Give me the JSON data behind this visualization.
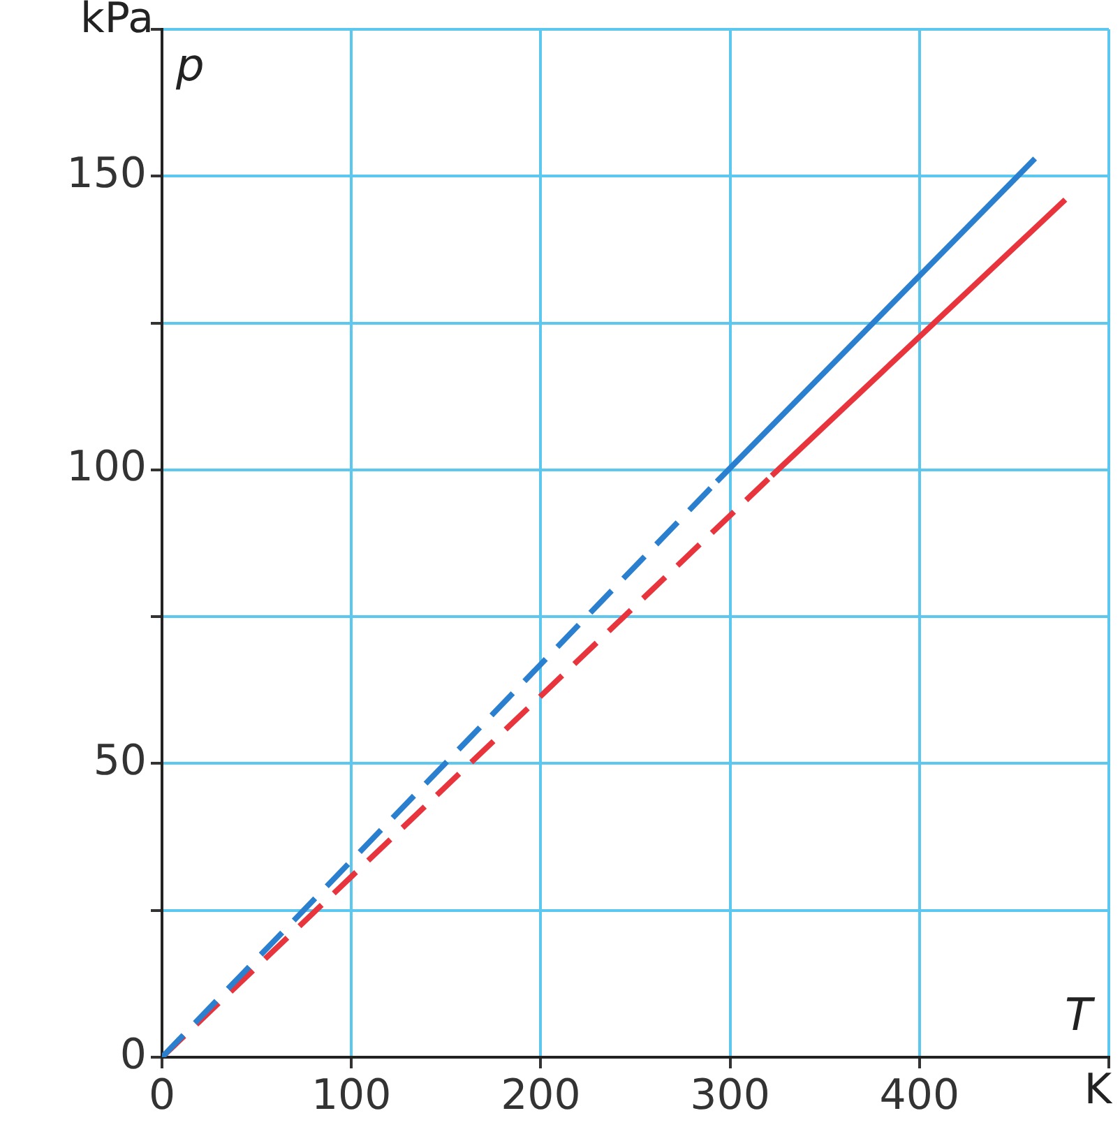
{
  "chart_data": {
    "type": "line",
    "xlabel": "T",
    "ylabel": "p",
    "annotations": [
      "kPa",
      "K"
    ],
    "xlim": [
      0,
      500
    ],
    "xticks": [
      0,
      100,
      200,
      300,
      400,
      {
        "value": 500,
        "label": null
      }
    ],
    "ylim": [
      0,
      175
    ],
    "yticks": [
      0,
      {
        "value": 25,
        "label": null
      },
      50,
      {
        "value": 75,
        "label": null
      },
      100,
      {
        "value": 125,
        "label": null
      },
      150,
      {
        "value": 175,
        "label": null
      }
    ],
    "grid": true,
    "legend": false,
    "marker": "none",
    "series": [
      {
        "color": "#2a7fcf",
        "line_style": "dashed",
        "x": [
          0,
          293
        ],
        "values": [
          0,
          98
        ]
      },
      {
        "color": "#2a7fcf",
        "line_style": "solid",
        "x": [
          293,
          461
        ],
        "values": [
          98,
          153
        ]
      },
      {
        "color": "#e8343c",
        "line_style": "dashed",
        "x": [
          0,
          322
        ],
        "values": [
          0,
          99
        ]
      },
      {
        "color": "#e8343c",
        "line_style": "solid",
        "x": [
          322,
          477
        ],
        "values": [
          99,
          146
        ]
      }
    ]
  }
}
